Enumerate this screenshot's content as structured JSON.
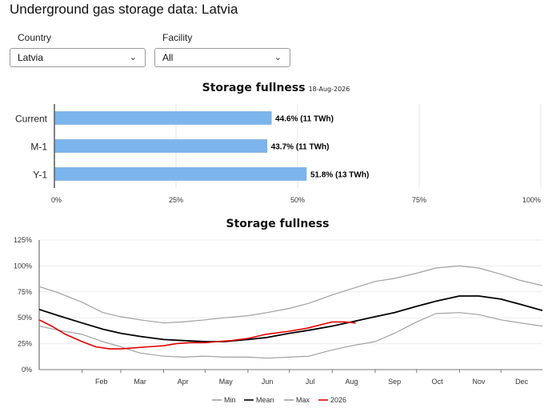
{
  "page": {
    "title": "Underground gas storage data: Latvia"
  },
  "filters": {
    "country": {
      "label": "Country",
      "value": "Latvia"
    },
    "facility": {
      "label": "Facility",
      "value": "All"
    }
  },
  "colors": {
    "bar": "#7cb5ec",
    "min": "#a0a0a0",
    "mean": "#000000",
    "max": "#a0a0a0",
    "current_year": "#e00000"
  },
  "chart_data": [
    {
      "type": "bar",
      "orientation": "horizontal",
      "title": "Storage fullness",
      "subtitle": "18-Aug-2026",
      "categories": [
        "Current",
        "M-1",
        "Y-1"
      ],
      "values": [
        44.6,
        43.7,
        51.8
      ],
      "data_labels": [
        "44.6% (11 TWh)",
        "43.7% (11 TWh)",
        "51.8% (13 TWh)"
      ],
      "xlim": [
        0,
        100
      ],
      "x_ticks": [
        "0%",
        "25%",
        "50%",
        "75%",
        "100%"
      ],
      "grid": true
    },
    {
      "type": "line",
      "title": "Storage fullness",
      "ylim": [
        0,
        125
      ],
      "y_ticks": [
        "0%",
        "25%",
        "50%",
        "75%",
        "100%",
        "125%"
      ],
      "x_ticks": [
        "Feb",
        "Mar",
        "Apr",
        "May",
        "Jun",
        "Jul",
        "Aug",
        "Sep",
        "Oct",
        "Nov",
        "Dec"
      ],
      "x_unit": "day of year",
      "legend_position": "bottom",
      "grid": true,
      "series": [
        {
          "name": "Min",
          "x": [
            1,
            15,
            32,
            47,
            60,
            74,
            91,
            105,
            121,
            135,
            152,
            166,
            182,
            196,
            213,
            227,
            244,
            258,
            274,
            288,
            305,
            319,
            335,
            349,
            365
          ],
          "values": [
            42,
            38,
            34,
            27,
            22,
            16,
            13,
            12,
            13,
            12,
            12,
            11,
            12,
            13,
            19,
            23,
            27,
            35,
            46,
            54,
            55,
            53,
            48,
            45,
            42
          ]
        },
        {
          "name": "Mean",
          "x": [
            1,
            15,
            32,
            47,
            60,
            74,
            91,
            105,
            121,
            135,
            152,
            166,
            182,
            196,
            213,
            227,
            244,
            258,
            274,
            288,
            305,
            319,
            335,
            349,
            365
          ],
          "values": [
            58,
            52,
            45,
            39,
            35,
            32,
            29,
            28,
            27,
            27,
            29,
            31,
            35,
            38,
            42,
            46,
            51,
            55,
            61,
            66,
            71,
            71,
            68,
            63,
            57
          ]
        },
        {
          "name": "Max",
          "x": [
            1,
            15,
            32,
            47,
            60,
            74,
            91,
            105,
            121,
            135,
            152,
            166,
            182,
            196,
            213,
            227,
            244,
            258,
            274,
            288,
            305,
            319,
            335,
            349,
            365
          ],
          "values": [
            80,
            74,
            65,
            55,
            51,
            48,
            45,
            46,
            48,
            50,
            52,
            55,
            59,
            64,
            72,
            78,
            85,
            88,
            93,
            98,
            100,
            98,
            92,
            86,
            81
          ]
        },
        {
          "name": "2026",
          "x": [
            1,
            10,
            20,
            32,
            42,
            52,
            60,
            70,
            80,
            91,
            100,
            110,
            121,
            130,
            140,
            152,
            165,
            182,
            195,
            213,
            222,
            230
          ],
          "values": [
            48,
            42,
            34,
            27,
            22,
            20,
            20,
            21,
            22,
            23,
            25,
            26,
            26,
            27,
            28,
            30,
            34,
            37,
            40,
            46,
            46,
            45
          ]
        }
      ]
    }
  ]
}
